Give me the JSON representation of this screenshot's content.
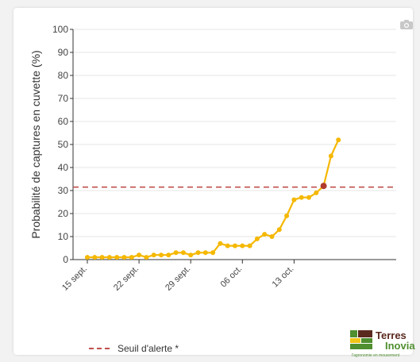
{
  "chart_data": {
    "type": "line",
    "ylabel": "Probabilité de captures en cuvette (%)",
    "xlabel": "",
    "ylim": [
      0,
      100
    ],
    "yticks": [
      0,
      10,
      20,
      30,
      40,
      50,
      60,
      70,
      80,
      90,
      100
    ],
    "xtick_labels": [
      "15 sept.",
      "22 sept.",
      "29 sept.",
      "06 oct.",
      "13 oct."
    ],
    "x_start_date": "2024-09-15",
    "x_end_date": "2024-10-20",
    "grid": true,
    "series": [
      {
        "values": [
          1,
          1,
          1,
          1,
          1,
          1,
          1,
          2,
          1,
          2,
          2,
          2,
          3,
          3,
          2,
          3,
          3,
          3,
          7,
          6,
          6,
          6,
          6,
          9,
          11,
          10,
          13,
          19,
          26,
          27,
          27,
          29,
          32,
          45,
          52
        ],
        "color": "#f5b800"
      }
    ],
    "threshold": {
      "value": 31.5,
      "label": "Seuil d'alerte *",
      "color": "#c0504d"
    },
    "highlight_point": {
      "index": 32,
      "value": 32,
      "color": "#b03a2e"
    },
    "legend_placement": "bottom-left"
  },
  "toolbar": {
    "camera_icon": "camera-icon"
  },
  "logo": {
    "name_line1": "Terres",
    "name_line2": "Inovia",
    "tagline": "l'agronomie en mouvement",
    "colors": [
      "#5a2a1e",
      "#4f8f2f",
      "#f0c419"
    ]
  }
}
